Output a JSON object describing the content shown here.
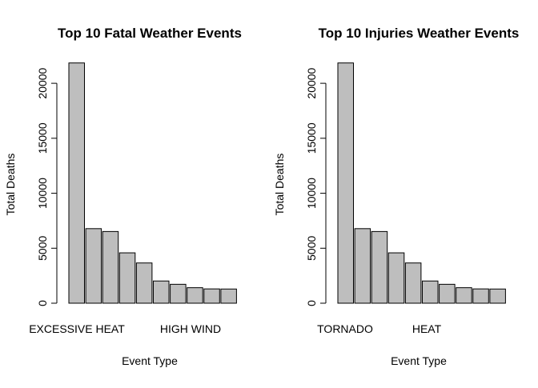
{
  "chart_data": [
    {
      "type": "bar",
      "title": "Top 10 Fatal Weather Events",
      "xlabel": "Event Type",
      "ylabel": "Total Deaths",
      "ylim": [
        0,
        21900
      ],
      "yticks": [
        0,
        5000,
        10000,
        15000,
        20000
      ],
      "tick_labels": [
        "0",
        "5000",
        "10000",
        "15000",
        "20000"
      ],
      "categories": [
        "EXCESSIVE HEAT",
        "",
        "",
        "",
        "",
        "HIGH WIND",
        "",
        "",
        "",
        ""
      ],
      "values": [
        21850,
        6780,
        6520,
        4580,
        3660,
        2020,
        1720,
        1410,
        1300,
        1290
      ],
      "bar_color": "#bebebe",
      "grid": false,
      "legend": "none"
    },
    {
      "type": "bar",
      "title": "Top 10 Injuries Weather Events",
      "xlabel": "Event Type",
      "ylabel": "Total Deaths",
      "ylim": [
        0,
        21900
      ],
      "yticks": [
        0,
        5000,
        10000,
        15000,
        20000
      ],
      "tick_labels": [
        "0",
        "5000",
        "10000",
        "15000",
        "20000"
      ],
      "categories": [
        "TORNADO",
        "",
        "",
        "",
        "",
        "HEAT",
        "",
        "",
        "",
        ""
      ],
      "values": [
        21850,
        6780,
        6520,
        4580,
        3660,
        2020,
        1720,
        1410,
        1300,
        1290
      ],
      "bar_color": "#bebebe",
      "grid": false,
      "legend": "none"
    }
  ]
}
